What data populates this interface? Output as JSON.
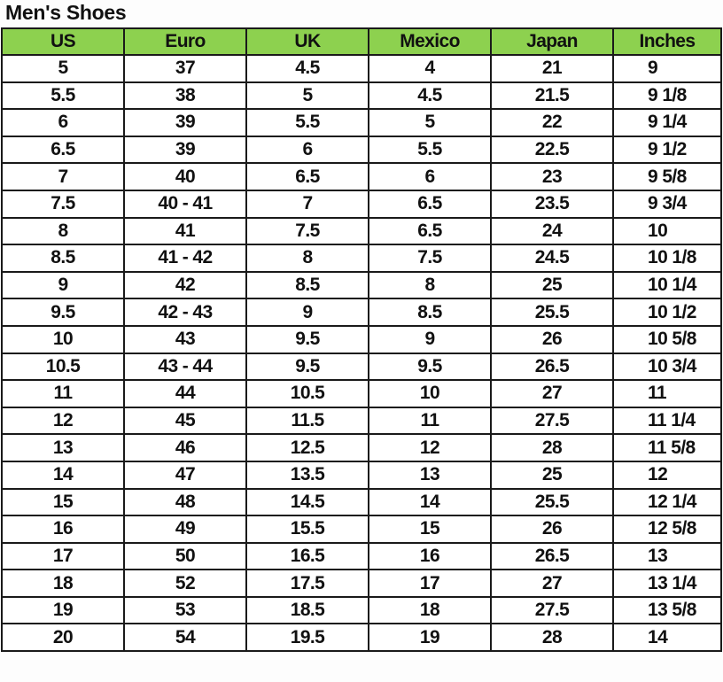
{
  "title": "Men's Shoes",
  "header_color": "#8dd14f",
  "columns": [
    "US",
    "Euro",
    "UK",
    "Mexico",
    "Japan",
    "Inches"
  ],
  "rows": [
    [
      "5",
      "37",
      "4.5",
      "4",
      "21",
      "9"
    ],
    [
      "5.5",
      "38",
      "5",
      "4.5",
      "21.5",
      "9 1/8"
    ],
    [
      "6",
      "39",
      "5.5",
      "5",
      "22",
      "9 1/4"
    ],
    [
      "6.5",
      "39",
      "6",
      "5.5",
      "22.5",
      "9 1/2"
    ],
    [
      "7",
      "40",
      "6.5",
      "6",
      "23",
      "9 5/8"
    ],
    [
      "7.5",
      "40 - 41",
      "7",
      "6.5",
      "23.5",
      "9 3/4"
    ],
    [
      "8",
      "41",
      "7.5",
      "6.5",
      "24",
      "10"
    ],
    [
      "8.5",
      "41 - 42",
      "8",
      "7.5",
      "24.5",
      "10 1/8"
    ],
    [
      "9",
      "42",
      "8.5",
      "8",
      "25",
      "10 1/4"
    ],
    [
      "9.5",
      "42 - 43",
      "9",
      "8.5",
      "25.5",
      "10 1/2"
    ],
    [
      "10",
      "43",
      "9.5",
      "9",
      "26",
      "10 5/8"
    ],
    [
      "10.5",
      "43 - 44",
      "9.5",
      "9.5",
      "26.5",
      "10 3/4"
    ],
    [
      "11",
      "44",
      "10.5",
      "10",
      "27",
      "11"
    ],
    [
      "12",
      "45",
      "11.5",
      "11",
      "27.5",
      "11 1/4"
    ],
    [
      "13",
      "46",
      "12.5",
      "12",
      "28",
      "11 5/8"
    ],
    [
      "14",
      "47",
      "13.5",
      "13",
      "25",
      "12"
    ],
    [
      "15",
      "48",
      "14.5",
      "14",
      "25.5",
      "12 1/4"
    ],
    [
      "16",
      "49",
      "15.5",
      "15",
      "26",
      "12 5/8"
    ],
    [
      "17",
      "50",
      "16.5",
      "16",
      "26.5",
      "13"
    ],
    [
      "18",
      "52",
      "17.5",
      "17",
      "27",
      "13 1/4"
    ],
    [
      "19",
      "53",
      "18.5",
      "18",
      "27.5",
      "13 5/8"
    ],
    [
      "20",
      "54",
      "19.5",
      "19",
      "28",
      "14"
    ]
  ]
}
